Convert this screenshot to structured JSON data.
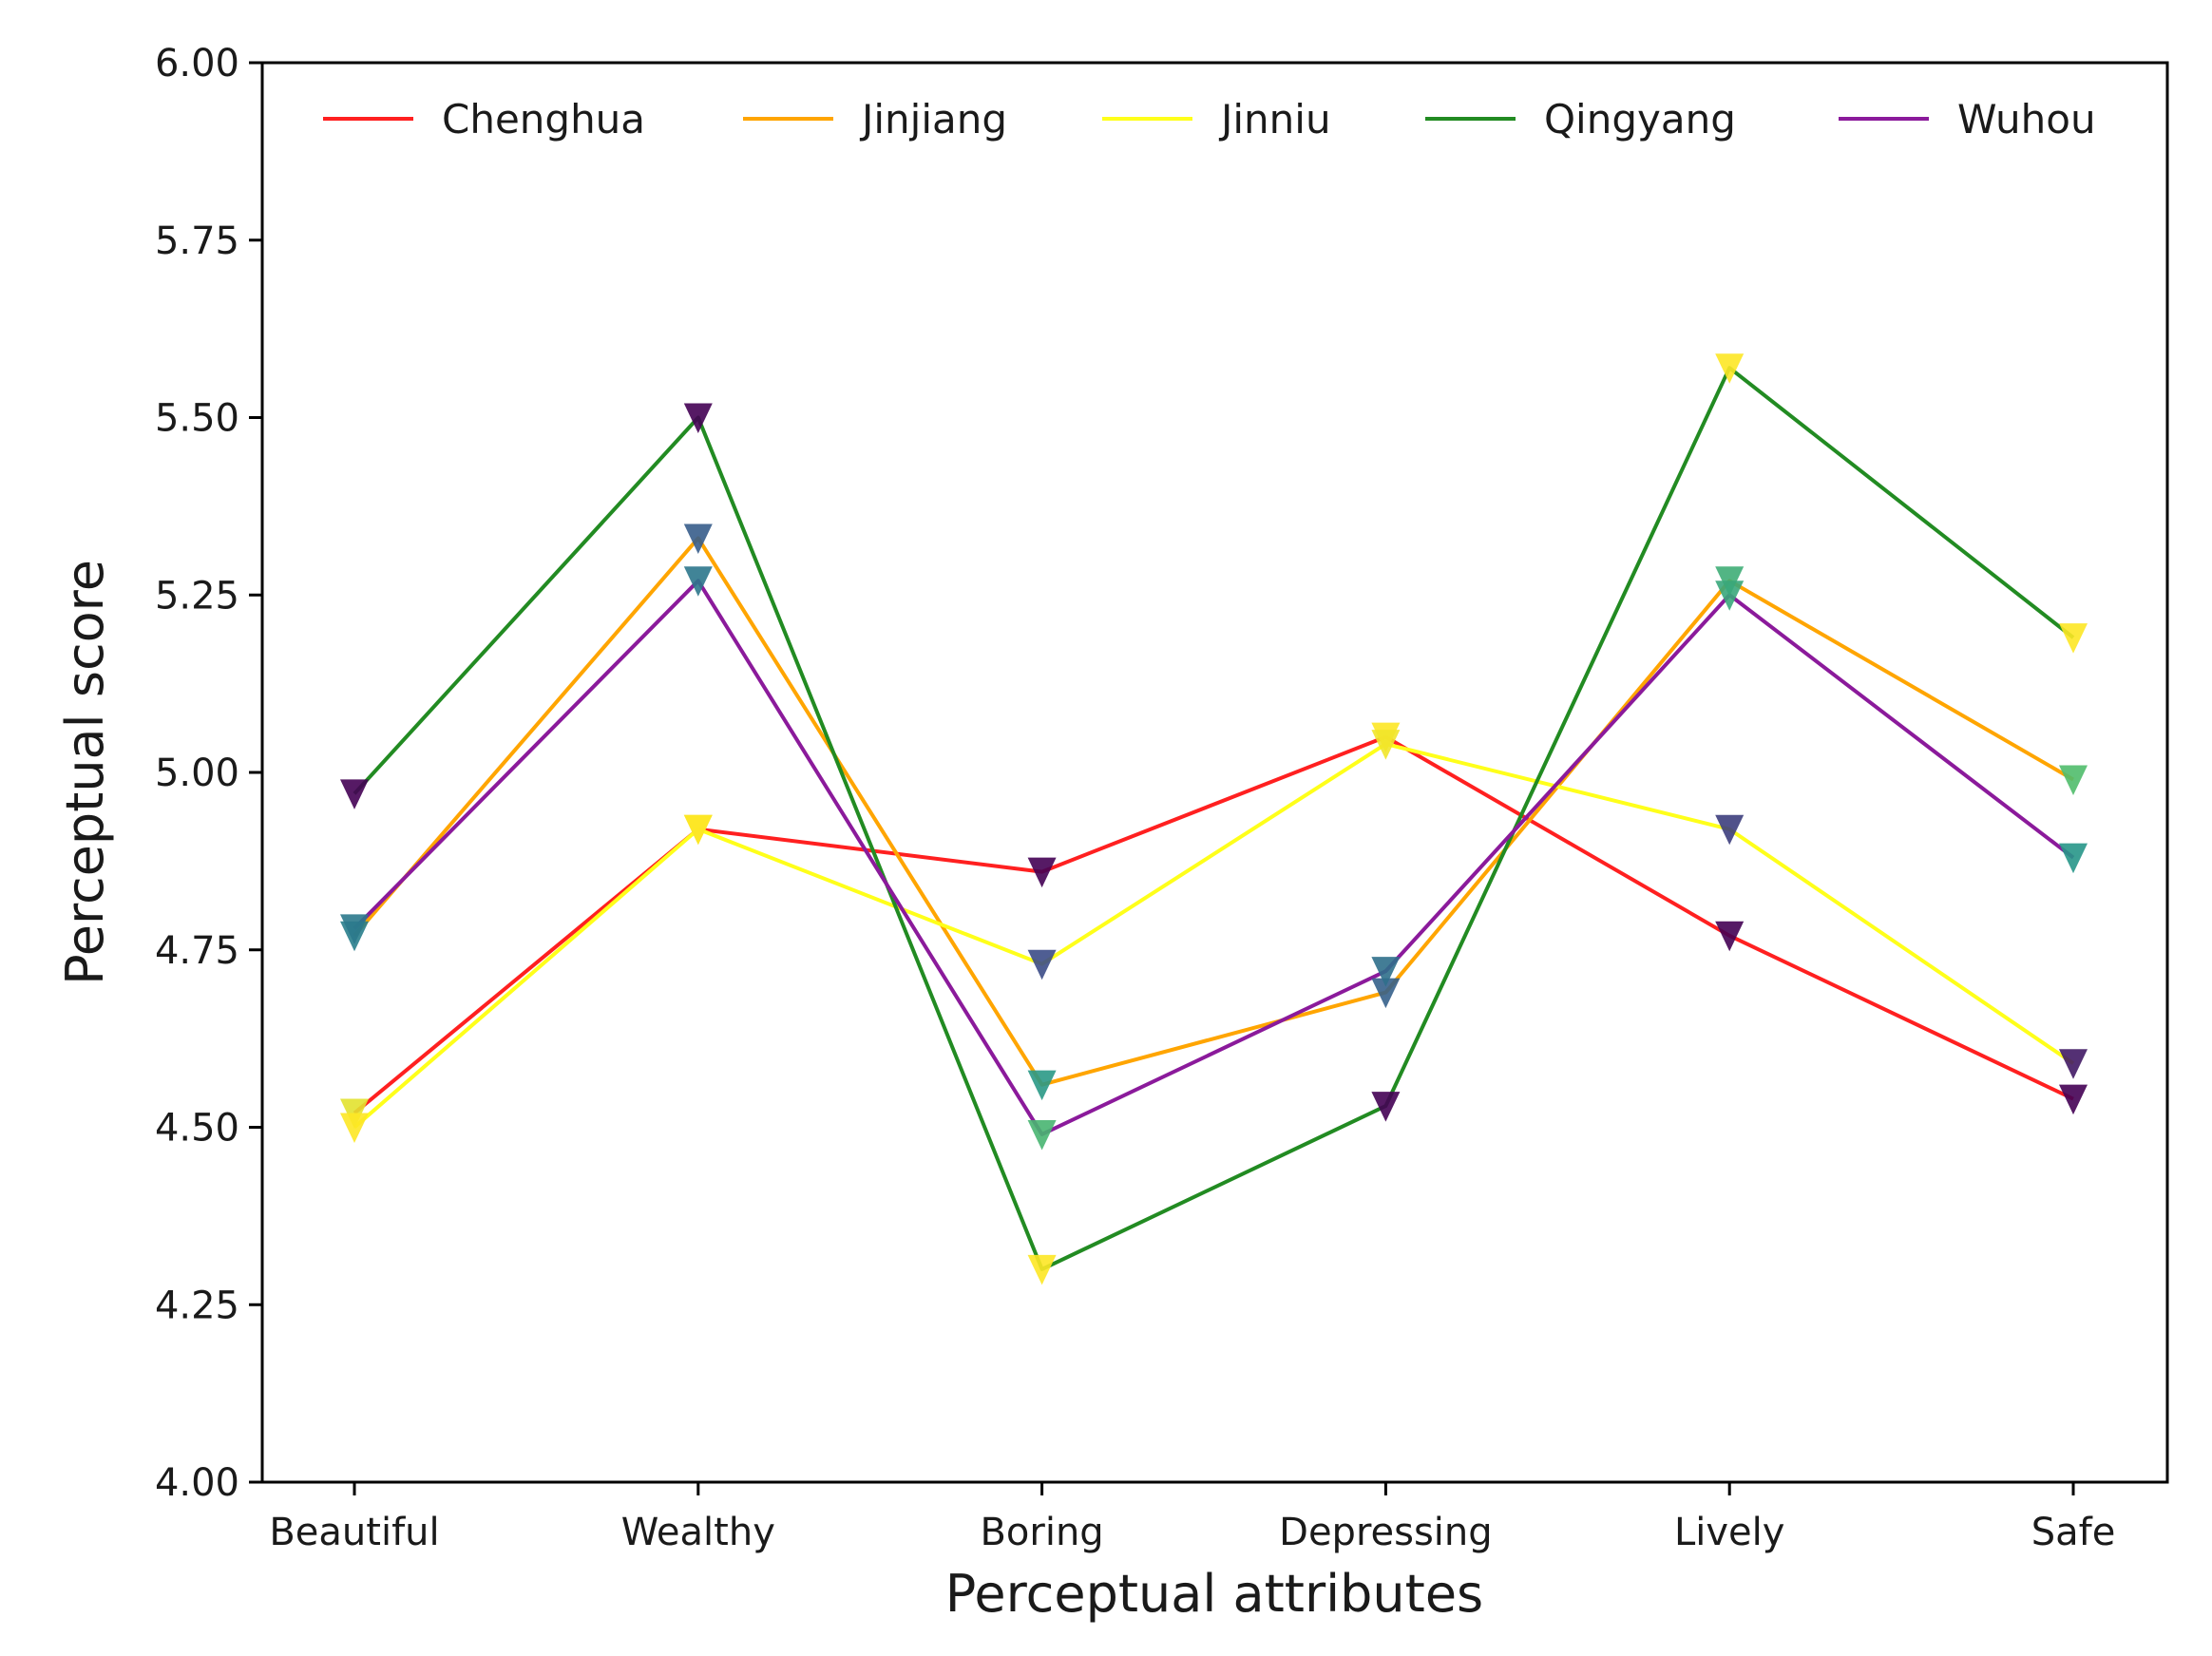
{
  "chart_data": {
    "type": "line",
    "title": "",
    "xlabel": "Perceptual attributes",
    "ylabel": "Perceptual score",
    "categories": [
      "Beautiful",
      "Wealthy",
      "Boring",
      "Depressing",
      "Lively",
      "Safe"
    ],
    "ylim": [
      4.0,
      6.0
    ],
    "yticks": [
      "4.00",
      "4.25",
      "4.50",
      "4.75",
      "5.00",
      "5.25",
      "5.50",
      "5.75",
      "6.00"
    ],
    "ytick_values": [
      4.0,
      4.25,
      4.5,
      4.75,
      5.0,
      5.25,
      5.5,
      5.75,
      6.0
    ],
    "grid": false,
    "legend_position": "top",
    "marker": "triangle-down",
    "series": [
      {
        "name": "Chenghua",
        "color": "#ff2020",
        "values": [
          4.52,
          4.92,
          4.86,
          5.05,
          4.77,
          4.54
        ]
      },
      {
        "name": "Jinjiang",
        "color": "#ffa500",
        "values": [
          4.77,
          5.33,
          4.56,
          4.69,
          5.27,
          4.99
        ]
      },
      {
        "name": "Jinniu",
        "color": "#ffff1a",
        "values": [
          4.5,
          4.92,
          4.73,
          5.04,
          4.92,
          4.59
        ]
      },
      {
        "name": "Qingyang",
        "color": "#228b22",
        "values": [
          4.97,
          5.5,
          4.3,
          4.53,
          5.57,
          5.19
        ]
      },
      {
        "name": "Wuhou",
        "color": "#8b1a9b",
        "values": [
          4.78,
          5.27,
          4.49,
          4.72,
          5.25,
          4.88
        ]
      }
    ]
  }
}
